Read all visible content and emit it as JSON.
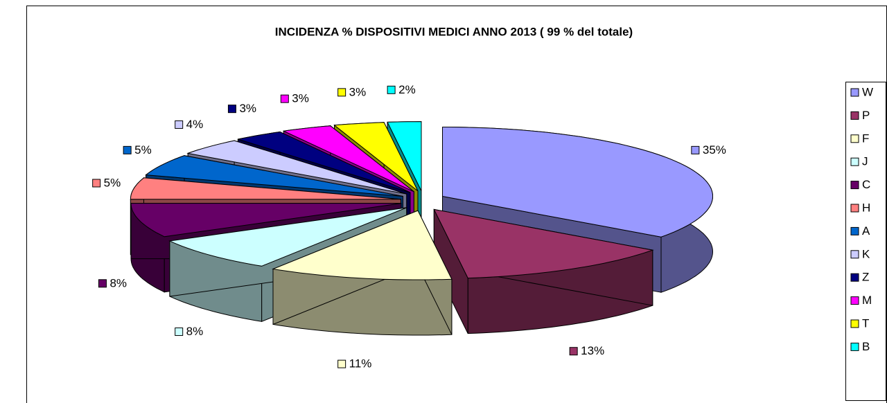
{
  "chart_data": {
    "type": "pie3d",
    "title": "INCIDENZA % DISPOSITIVI MEDICI ANNO 2013 ( 99 % del totale)",
    "categories": [
      "W",
      "P",
      "F",
      "J",
      "C",
      "H",
      "A",
      "K",
      "Z",
      "M",
      "T",
      "B"
    ],
    "values": [
      35,
      13,
      11,
      8,
      8,
      5,
      5,
      4,
      3,
      3,
      3,
      2
    ],
    "value_labels": [
      "35%",
      "13%",
      "11%",
      "8%",
      "8%",
      "5%",
      "5%",
      "4%",
      "3%",
      "3%",
      "3%",
      "2%"
    ],
    "colors": [
      "#9999ff",
      "#993366",
      "#ffffcc",
      "#ccffff",
      "#660066",
      "#ff8080",
      "#0066cc",
      "#ccccff",
      "#000080",
      "#ff00ff",
      "#ffff00",
      "#00ffff"
    ],
    "legend": "right"
  }
}
